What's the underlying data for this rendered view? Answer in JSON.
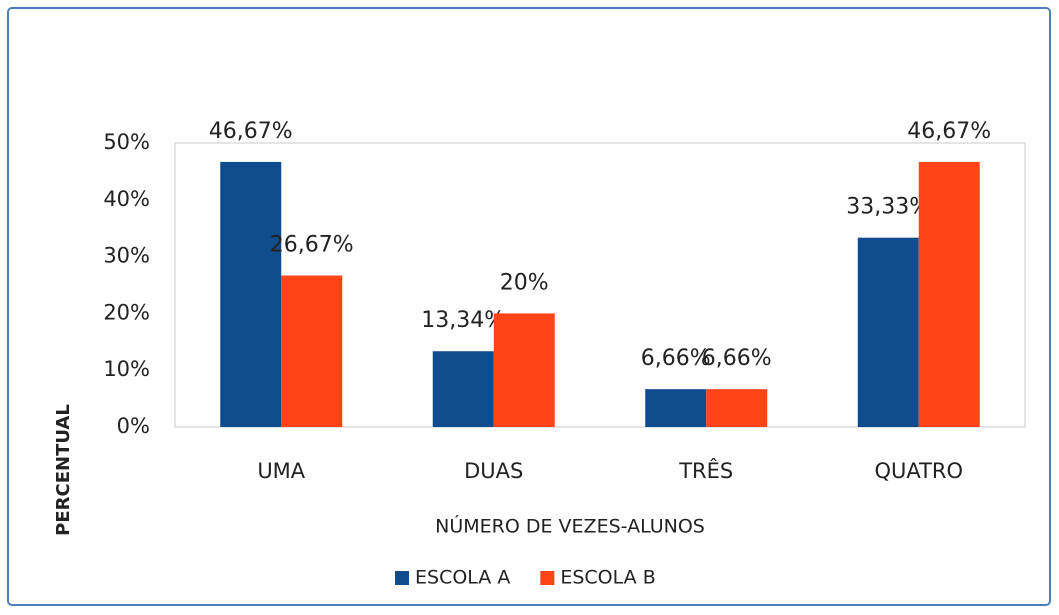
{
  "chart_data": {
    "type": "bar",
    "x_label": "NÚMERO DE VEZES-ALUNOS",
    "y_label": "PERCENTUAL",
    "categories": [
      "UMA",
      "DUAS",
      "TRÊS",
      "QUATRO"
    ],
    "series": [
      {
        "name": "ESCOLA A",
        "color": "#0f4c8e",
        "values": [
          46.67,
          13.34,
          6.66,
          33.33
        ],
        "value_labels": [
          "46,67%",
          "13,34%",
          "6,66%",
          "33,33%"
        ]
      },
      {
        "name": "ESCOLA B",
        "color": "#ff4517",
        "values": [
          26.67,
          20,
          6.66,
          46.67
        ],
        "value_labels": [
          "26,67%",
          "20%",
          "6,66%",
          "46,67%"
        ]
      }
    ],
    "ylim": [
      0,
      50
    ],
    "yticks": [
      {
        "value": 0,
        "label": "0%"
      },
      {
        "value": 10,
        "label": "10%"
      },
      {
        "value": 20,
        "label": "20%"
      },
      {
        "value": 30,
        "label": "30%"
      },
      {
        "value": 40,
        "label": "40%"
      },
      {
        "value": 50,
        "label": "50%"
      }
    ],
    "legend": "bottom",
    "grid": false
  }
}
